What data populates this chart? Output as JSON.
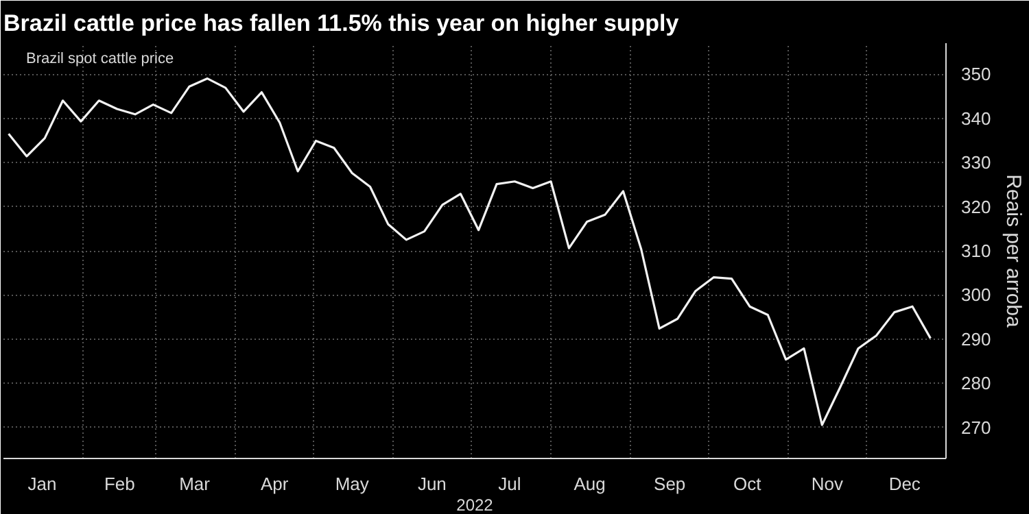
{
  "chart_data": {
    "type": "line",
    "title": "Brazil cattle price has fallen 11.5% this year on higher supply",
    "xlabel": "2022",
    "ylabel": "Reais per arroba",
    "x": [
      "2022-01-03",
      "2022-01-10",
      "2022-01-17",
      "2022-01-24",
      "2022-01-31",
      "2022-02-07",
      "2022-02-14",
      "2022-02-21",
      "2022-02-28",
      "2022-03-07",
      "2022-03-14",
      "2022-03-21",
      "2022-03-28",
      "2022-04-04",
      "2022-04-11",
      "2022-04-18",
      "2022-04-25",
      "2022-05-02",
      "2022-05-09",
      "2022-05-16",
      "2022-05-23",
      "2022-05-30",
      "2022-06-06",
      "2022-06-13",
      "2022-06-20",
      "2022-06-27",
      "2022-07-04",
      "2022-07-11",
      "2022-07-18",
      "2022-07-25",
      "2022-08-01",
      "2022-08-08",
      "2022-08-15",
      "2022-08-22",
      "2022-08-29",
      "2022-09-05",
      "2022-09-12",
      "2022-09-19",
      "2022-09-26",
      "2022-10-03",
      "2022-10-10",
      "2022-10-17",
      "2022-10-24",
      "2022-10-31",
      "2022-11-07",
      "2022-11-14",
      "2022-11-21",
      "2022-11-28",
      "2022-12-05",
      "2022-12-12",
      "2022-12-19",
      "2022-12-26"
    ],
    "series": [
      {
        "name": "Brazil spot cattle price",
        "color": "#f2f2f2",
        "values": [
          336.5,
          331.4,
          335.5,
          344,
          339.3,
          344,
          342.1,
          340.9,
          343.1,
          341.2,
          347.2,
          349,
          346.9,
          341.5,
          345.9,
          339,
          328,
          334.9,
          333.3,
          327.6,
          324.5,
          316,
          312.5,
          314.4,
          320.4,
          322.9,
          314.7,
          325.1,
          325.7,
          324.2,
          325.7,
          310.6,
          316.6,
          318.2,
          323.5,
          310.3,
          292.4,
          294.6,
          300.9,
          304,
          303.7,
          297.4,
          295.5,
          285.4,
          287.9,
          270.6,
          279.1,
          287.9,
          290.8,
          296.1,
          297.4,
          290.2
        ]
      }
    ],
    "xlim": [
      "2022-01-01",
      "2023-01-01"
    ],
    "xticks": [
      {
        "value": "2022-01-01",
        "label": null
      },
      {
        "value": "2022-01-16",
        "label": "Jan"
      },
      {
        "value": "2022-02-01",
        "label": null
      },
      {
        "value": "2022-02-15",
        "label": "Feb"
      },
      {
        "value": "2022-03-01",
        "label": null
      },
      {
        "value": "2022-03-16",
        "label": "Mar"
      },
      {
        "value": "2022-04-01",
        "label": null
      },
      {
        "value": "2022-04-16",
        "label": "Apr"
      },
      {
        "value": "2022-05-01",
        "label": null
      },
      {
        "value": "2022-05-16",
        "label": "May"
      },
      {
        "value": "2022-06-01",
        "label": null
      },
      {
        "value": "2022-06-16",
        "label": "Jun"
      },
      {
        "value": "2022-07-01",
        "label": null
      },
      {
        "value": "2022-07-16",
        "label": "Jul"
      },
      {
        "value": "2022-08-01",
        "label": null
      },
      {
        "value": "2022-08-16",
        "label": "Aug"
      },
      {
        "value": "2022-09-01",
        "label": null
      },
      {
        "value": "2022-09-16",
        "label": "Sep"
      },
      {
        "value": "2022-10-01",
        "label": null
      },
      {
        "value": "2022-10-16",
        "label": "Oct"
      },
      {
        "value": "2022-11-01",
        "label": null
      },
      {
        "value": "2022-11-16",
        "label": "Nov"
      },
      {
        "value": "2022-12-01",
        "label": null
      },
      {
        "value": "2022-12-16",
        "label": "Dec"
      }
    ],
    "ylim": [
      263,
      357
    ],
    "yticks": [
      270,
      280,
      290,
      300,
      310,
      320,
      330,
      340,
      350
    ],
    "grid": true,
    "legend": "top left",
    "marker": "none",
    "line_style": "solid"
  }
}
